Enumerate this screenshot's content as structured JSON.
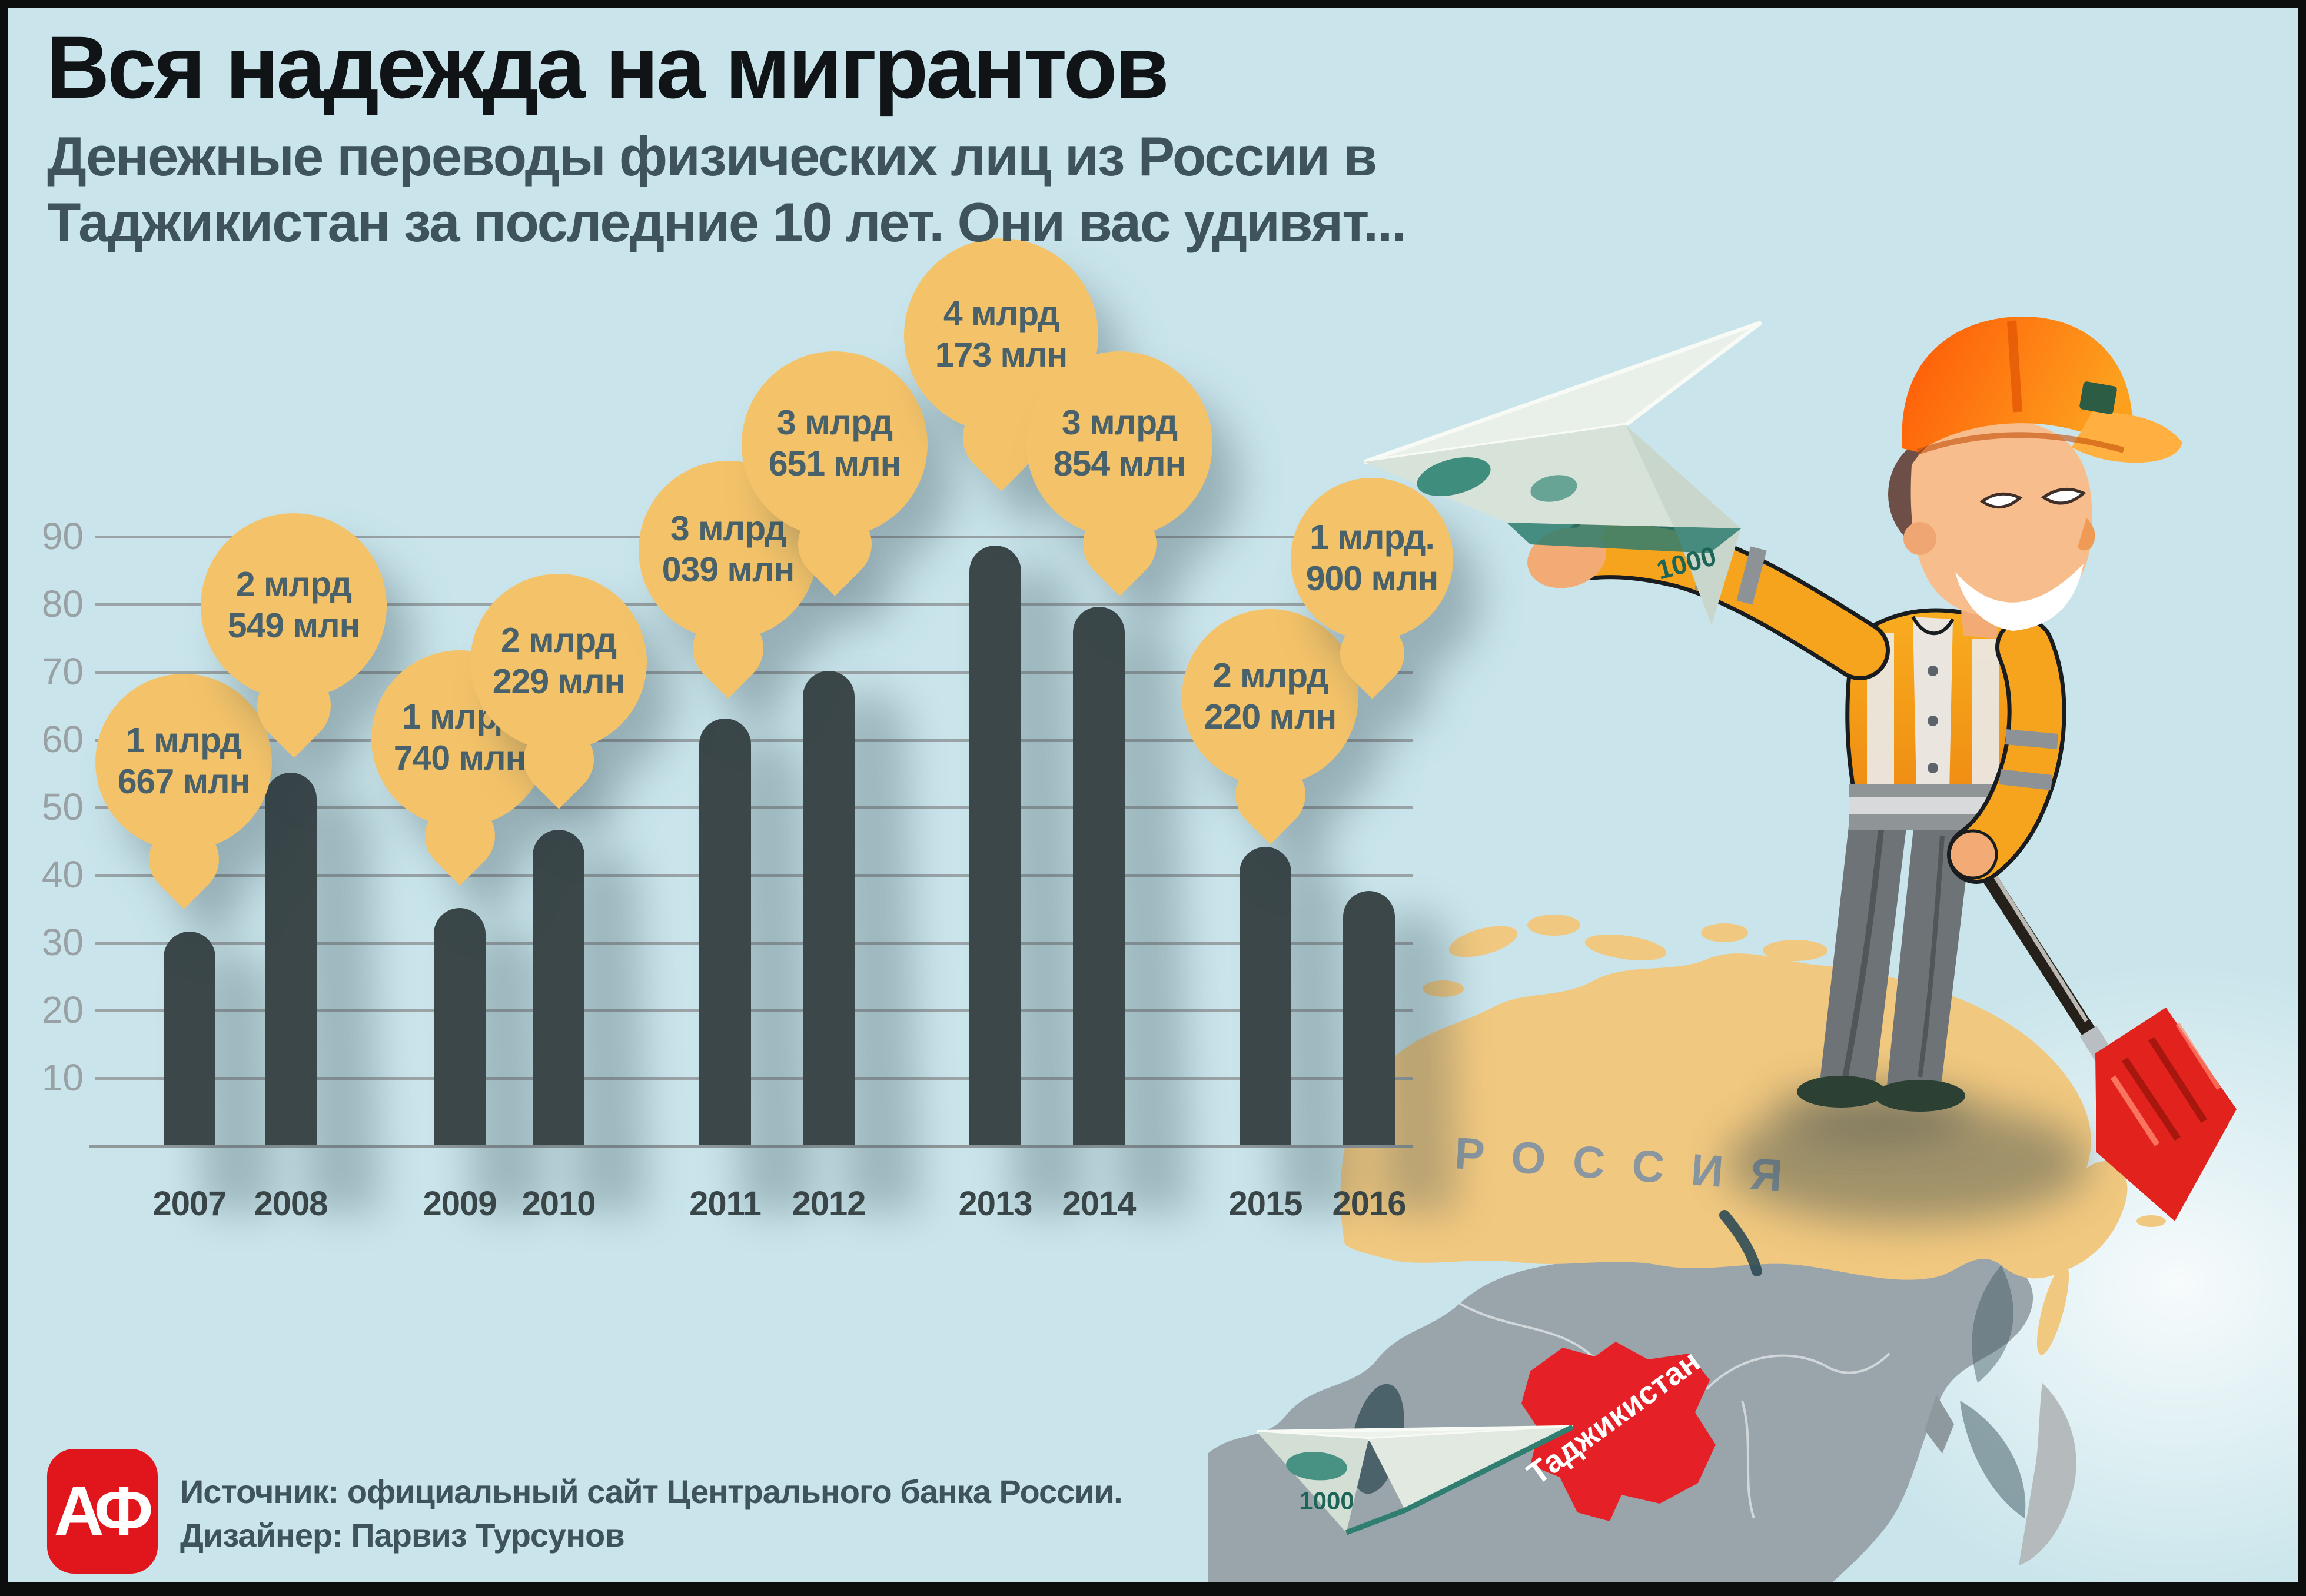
{
  "header": {
    "title": "Вся надежда на мигрантов",
    "subtitle_line1": "Денежные переводы физических лиц из России в",
    "subtitle_line2": "Таджикистан за последние 10 лет. Они вас удивят..."
  },
  "chart_data": {
    "type": "bar",
    "title": "Денежные переводы физических лиц из России в Таджикистан за последние 10 лет",
    "categories": [
      "2007",
      "2008",
      "2009",
      "2010",
      "2011",
      "2012",
      "2013",
      "2014",
      "2015",
      "2016"
    ],
    "values_millions": [
      1667,
      2549,
      1740,
      2229,
      3039,
      3651,
      4173,
      3854,
      2220,
      1900
    ],
    "labels": [
      [
        "1 млрд",
        "667 млн"
      ],
      [
        "2 млрд",
        "549 млн"
      ],
      [
        "1 млрд",
        "740 млн"
      ],
      [
        "2 млрд",
        "229 млн"
      ],
      [
        "3 млрд",
        "039 млн"
      ],
      [
        "3 млрд",
        "651 млн"
      ],
      [
        "4 млрд",
        "173 млн"
      ],
      [
        "3 млрд",
        "854 млн"
      ],
      [
        "2 млрд",
        "220 млн"
      ],
      [
        "1 млрд.",
        "900 млн"
      ]
    ],
    "bar_heights_axis_units": [
      31.5,
      55,
      35,
      46.5,
      63,
      70,
      88.5,
      79.5,
      44,
      37.5
    ],
    "y_ticks": [
      90,
      80,
      70,
      60,
      50,
      40,
      30,
      20,
      10
    ],
    "ylim": [
      0,
      95
    ],
    "grid": true,
    "legend": "none",
    "bubble_layout": [
      {
        "dx": -10,
        "cy": 1295,
        "r": 150
      },
      {
        "dx": 5,
        "cy": 1030,
        "r": 158
      },
      {
        "dx": 0,
        "cy": 1255,
        "r": 150
      },
      {
        "dx": 0,
        "cy": 1125,
        "r": 150
      },
      {
        "dx": 5,
        "cy": 935,
        "r": 152
      },
      {
        "dx": 10,
        "cy": 755,
        "r": 158
      },
      {
        "dx": 10,
        "cy": 570,
        "r": 165
      },
      {
        "dx": 35,
        "cy": 755,
        "r": 158
      },
      {
        "dx": 8,
        "cy": 1185,
        "r": 150
      },
      {
        "dx": 5,
        "cy": 950,
        "r": 138
      }
    ],
    "colors": {
      "background": "#c9e5eb",
      "bar": "#3b4749",
      "bubble": "#f4c369",
      "bubble_text": "#48616b",
      "gridline": "#9aa3a6",
      "axis_text": "#99a1a4",
      "year_text": "#3a4547"
    }
  },
  "map": {
    "russia_label": "РОССИЯ",
    "tajikistan_label": "Таджикистан",
    "banknote_value": "1000",
    "colors": {
      "russia": "#f1c87f",
      "land": "#9aa5ab",
      "tajikistan": "#e52127"
    }
  },
  "footer": {
    "logo_monogram": "АФ",
    "source": "Источник: официальный сайт Центрального банка России.",
    "designer": "Дизайнер: Парвиз Турсунов"
  }
}
